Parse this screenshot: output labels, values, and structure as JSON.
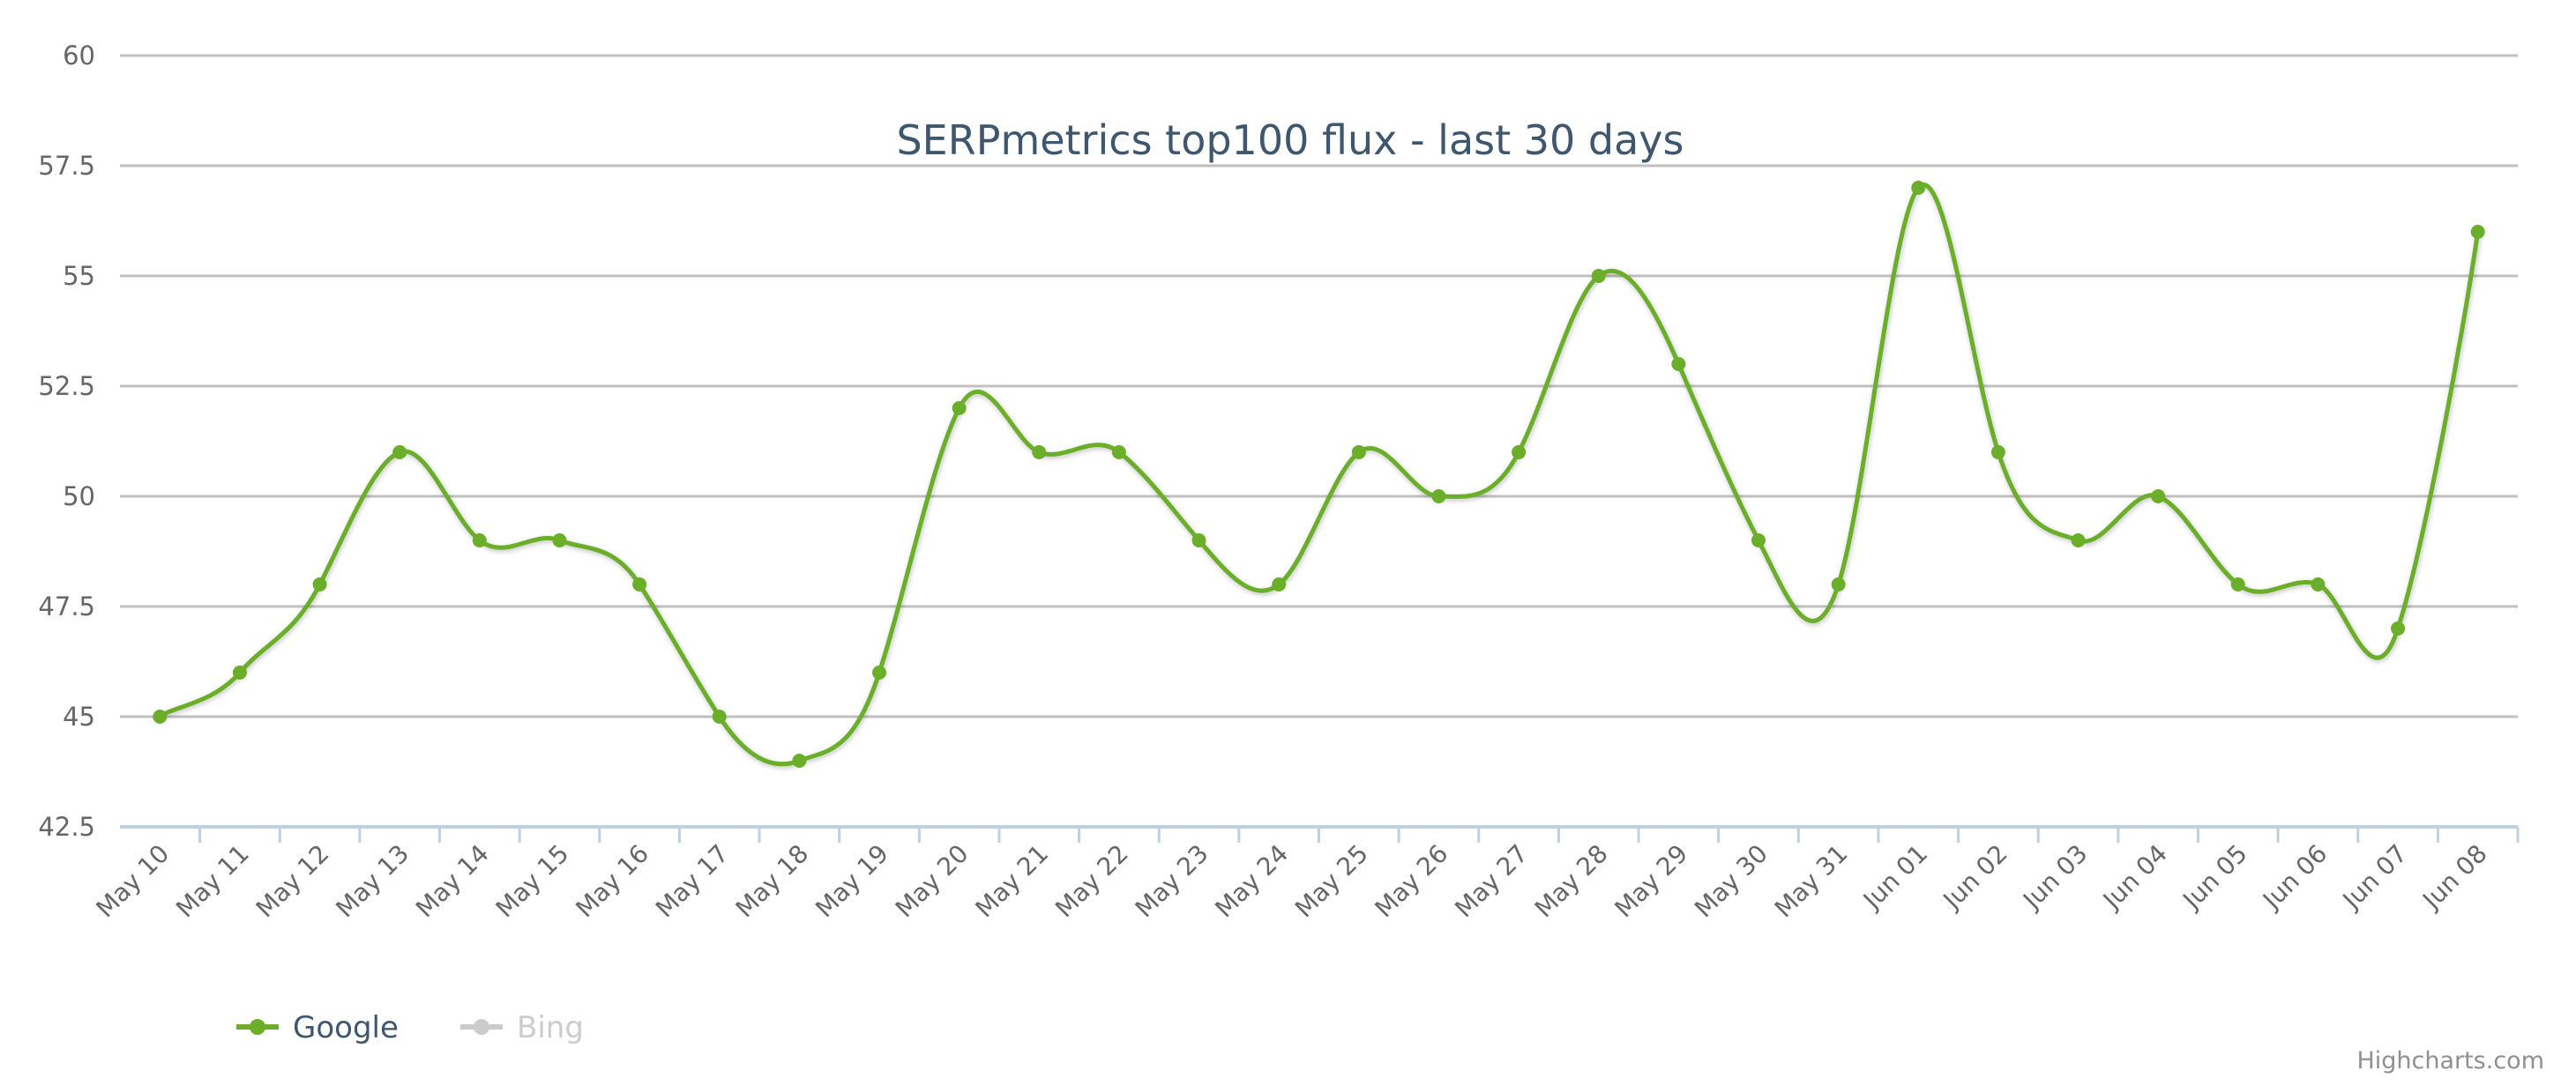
{
  "chart_data": {
    "type": "line",
    "title": "SERPmetrics top100 flux - last 30 days",
    "xlabel": "",
    "ylabel": "",
    "ylim": [
      42.5,
      60
    ],
    "yticks": [
      "42.5",
      "45",
      "47.5",
      "50",
      "52.5",
      "55",
      "57.5",
      "60"
    ],
    "grid": true,
    "legend_position": "bottom-left",
    "categories": [
      "May 10",
      "May 11",
      "May 12",
      "May 13",
      "May 14",
      "May 15",
      "May 16",
      "May 17",
      "May 18",
      "May 19",
      "May 20",
      "May 21",
      "May 22",
      "May 23",
      "May 24",
      "May 25",
      "May 26",
      "May 27",
      "May 28",
      "May 29",
      "May 30",
      "May 31",
      "Jun 01",
      "Jun 02",
      "Jun 03",
      "Jun 04",
      "Jun 05",
      "Jun 06",
      "Jun 07",
      "Jun 08"
    ],
    "series": [
      {
        "name": "Google",
        "visible": true,
        "color": "#6aae2a",
        "values": [
          45,
          46,
          48,
          51,
          49,
          49,
          48,
          45,
          44,
          46,
          52,
          51,
          51,
          49,
          48,
          51,
          50,
          51,
          55,
          53,
          49,
          48,
          57,
          51,
          49,
          50,
          48,
          48,
          47,
          56
        ]
      },
      {
        "name": "Bing",
        "visible": false,
        "color": "#cccccc",
        "values": []
      }
    ]
  },
  "legend": {
    "items": [
      {
        "label": "Google",
        "color": "#6aae2a",
        "text_color": "#3e576f"
      },
      {
        "label": "Bing",
        "color": "#cccccc",
        "text_color": "#cccccc"
      }
    ]
  },
  "credits": "Highcharts.com"
}
